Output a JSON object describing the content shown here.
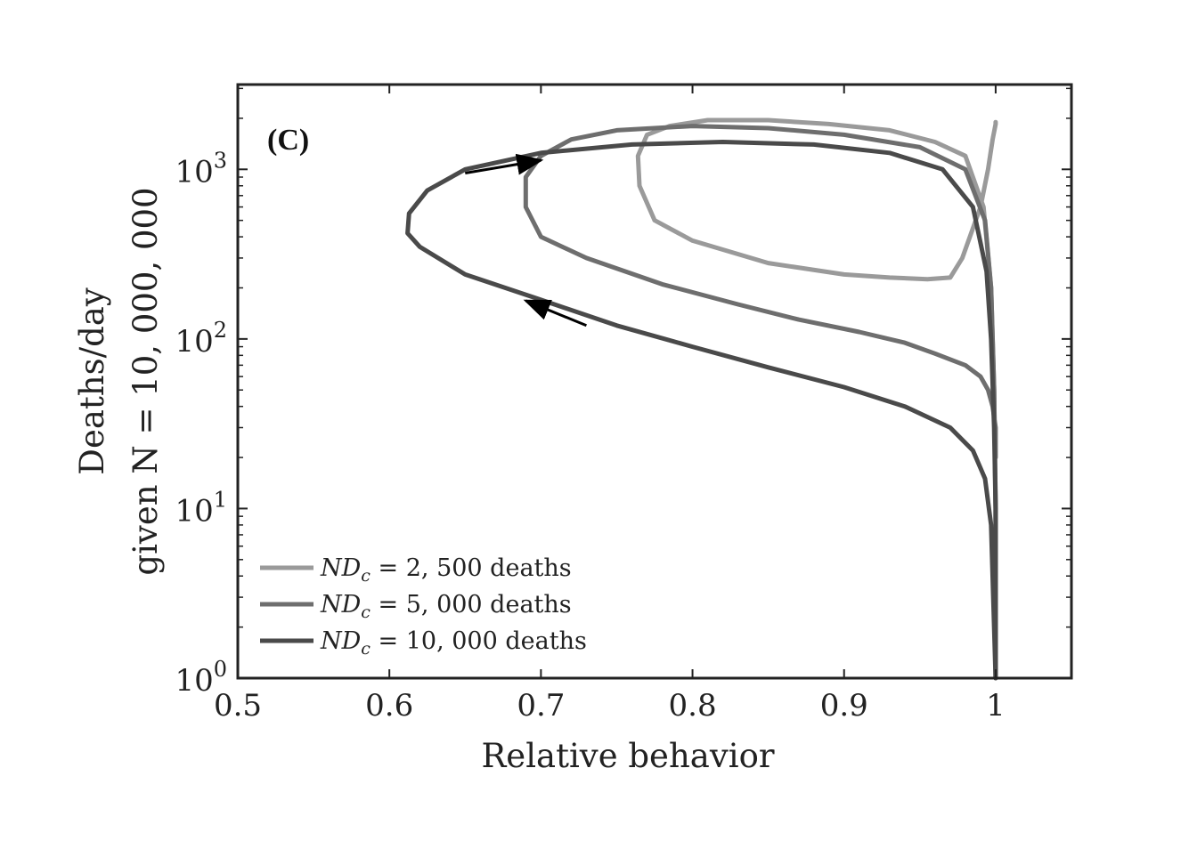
{
  "chart_data": {
    "type": "line",
    "panel_label": "(C)",
    "xlabel": "Relative behavior",
    "ylabel_line1": "Deaths/day",
    "ylabel_line2": "given N = 10, 000, 000",
    "xlim": [
      0.5,
      1.05
    ],
    "ylim": [
      1,
      3162
    ],
    "yscale": "log",
    "x_ticks": [
      0.5,
      0.6,
      0.7,
      0.8,
      0.9,
      1.0
    ],
    "x_tick_labels": [
      "0.5",
      "0.6",
      "0.7",
      "0.8",
      "0.9",
      "1"
    ],
    "y_ticks": [
      1,
      10,
      100,
      1000
    ],
    "y_tick_bases": [
      "10",
      "10",
      "10",
      "10"
    ],
    "y_tick_exponents": [
      "0",
      "1",
      "2",
      "3"
    ],
    "legend_position": "bottom-left",
    "arrows": [
      {
        "from": [
          0.65,
          950
        ],
        "to": [
          0.7,
          1130
        ]
      },
      {
        "from": [
          0.73,
          120
        ],
        "to": [
          0.69,
          168
        ]
      }
    ],
    "series": [
      {
        "name": "ND_c = 2, 500 deaths",
        "legend_label": "ND",
        "legend_sub": "c",
        "legend_rest": " = 2, 500 deaths",
        "color": "#9a9a9a",
        "x": [
          1.0,
          1.0,
          0.999,
          0.997,
          0.992,
          0.98,
          0.96,
          0.93,
          0.89,
          0.85,
          0.81,
          0.785,
          0.77,
          0.764,
          0.765,
          0.775,
          0.8,
          0.85,
          0.9,
          0.93,
          0.955,
          0.97,
          0.978,
          0.99,
          0.995,
          0.998,
          1.0,
          1.0
        ],
        "y": [
          1,
          10,
          50,
          200,
          600,
          1200,
          1450,
          1700,
          1850,
          1950,
          1950,
          1800,
          1600,
          1200,
          800,
          500,
          380,
          280,
          240,
          230,
          225,
          230,
          300,
          600,
          1000,
          1500,
          1850,
          1900
        ]
      },
      {
        "name": "ND_c = 5, 000 deaths",
        "legend_label": "ND",
        "legend_sub": "c",
        "legend_rest": " = 5, 000 deaths",
        "color": "#6e6e6e",
        "x": [
          1.0,
          1.0,
          0.999,
          0.997,
          0.993,
          0.98,
          0.95,
          0.9,
          0.85,
          0.8,
          0.75,
          0.72,
          0.7,
          0.69,
          0.69,
          0.7,
          0.73,
          0.78,
          0.83,
          0.87,
          0.91,
          0.94,
          0.96,
          0.98,
          0.99,
          0.995,
          0.998,
          1.0,
          1.0
        ],
        "y": [
          1,
          10,
          50,
          200,
          500,
          1000,
          1350,
          1600,
          1750,
          1800,
          1700,
          1500,
          1200,
          900,
          600,
          400,
          300,
          210,
          160,
          130,
          110,
          95,
          82,
          70,
          60,
          50,
          40,
          30,
          20
        ]
      },
      {
        "name": "ND_c = 10, 000 deaths",
        "legend_label": "ND",
        "legend_sub": "c",
        "legend_rest": " = 10, 000 deaths",
        "color": "#4a4a4a",
        "x": [
          1.0,
          1.0,
          0.999,
          0.997,
          0.994,
          0.985,
          0.965,
          0.93,
          0.88,
          0.82,
          0.76,
          0.7,
          0.65,
          0.625,
          0.613,
          0.612,
          0.62,
          0.65,
          0.7,
          0.75,
          0.8,
          0.85,
          0.9,
          0.94,
          0.97,
          0.985,
          0.993,
          0.997,
          1.0
        ],
        "y": [
          1,
          10,
          30,
          100,
          250,
          600,
          1000,
          1250,
          1400,
          1450,
          1400,
          1250,
          1000,
          750,
          550,
          420,
          350,
          240,
          170,
          120,
          90,
          68,
          52,
          40,
          30,
          22,
          15,
          8,
          1
        ]
      }
    ]
  }
}
